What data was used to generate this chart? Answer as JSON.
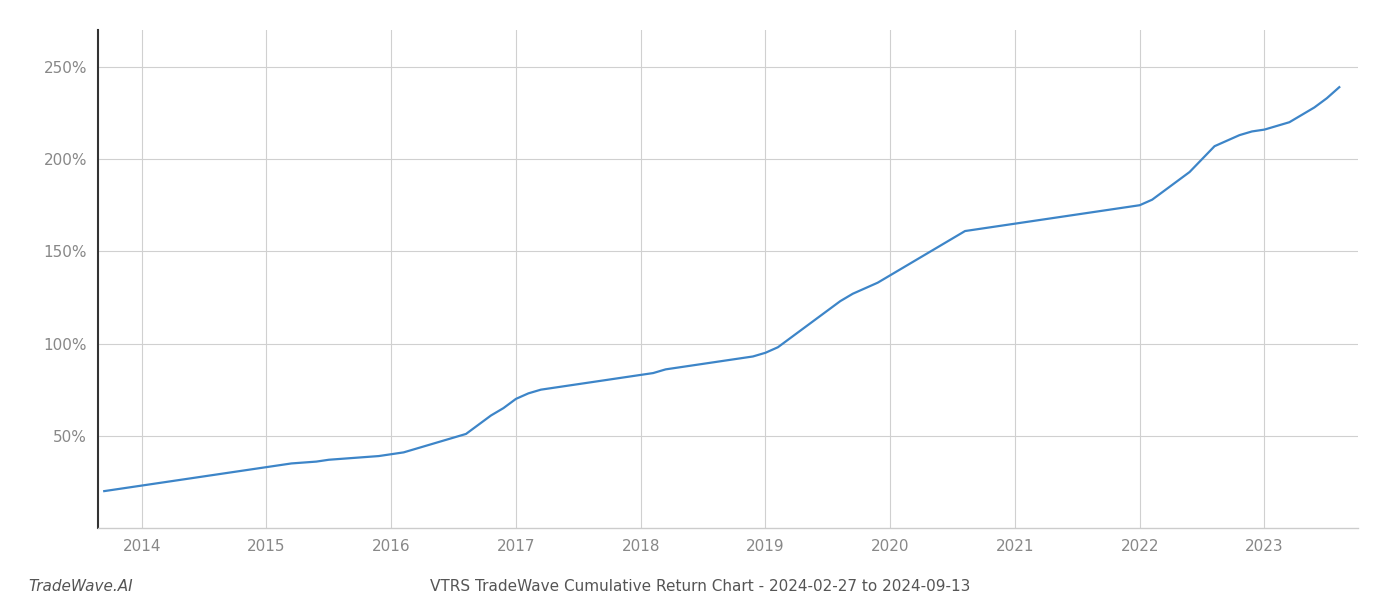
{
  "title": "VTRS TradeWave Cumulative Return Chart - 2024-02-27 to 2024-09-13",
  "watermark": "TradeWave.AI",
  "line_color": "#3d85c8",
  "background_color": "#ffffff",
  "grid_color": "#d0d0d0",
  "x_years": [
    2014,
    2015,
    2016,
    2017,
    2018,
    2019,
    2020,
    2021,
    2022,
    2023
  ],
  "data_x": [
    2013.7,
    2013.8,
    2013.9,
    2014.0,
    2014.1,
    2014.2,
    2014.3,
    2014.4,
    2014.5,
    2014.6,
    2014.7,
    2014.8,
    2014.9,
    2015.0,
    2015.1,
    2015.2,
    2015.3,
    2015.4,
    2015.5,
    2015.6,
    2015.7,
    2015.8,
    2015.9,
    2016.0,
    2016.1,
    2016.2,
    2016.3,
    2016.4,
    2016.5,
    2016.6,
    2016.7,
    2016.8,
    2016.9,
    2017.0,
    2017.1,
    2017.2,
    2017.3,
    2017.4,
    2017.5,
    2017.6,
    2017.7,
    2017.8,
    2017.9,
    2018.0,
    2018.1,
    2018.2,
    2018.3,
    2018.4,
    2018.5,
    2018.6,
    2018.7,
    2018.8,
    2018.9,
    2019.0,
    2019.1,
    2019.2,
    2019.3,
    2019.4,
    2019.5,
    2019.6,
    2019.7,
    2019.8,
    2019.9,
    2020.0,
    2020.1,
    2020.2,
    2020.3,
    2020.4,
    2020.5,
    2020.6,
    2020.7,
    2020.8,
    2020.9,
    2021.0,
    2021.1,
    2021.2,
    2021.3,
    2021.4,
    2021.5,
    2021.6,
    2021.7,
    2021.8,
    2021.9,
    2022.0,
    2022.1,
    2022.2,
    2022.3,
    2022.4,
    2022.5,
    2022.6,
    2022.7,
    2022.8,
    2022.9,
    2023.0,
    2023.1,
    2023.2,
    2023.3,
    2023.4,
    2023.5,
    2023.6
  ],
  "data_y": [
    20,
    21,
    22,
    23,
    24,
    25,
    26,
    27,
    28,
    29,
    30,
    31,
    32,
    33,
    34,
    35,
    35.5,
    36,
    37,
    37.5,
    38,
    38.5,
    39,
    40,
    41,
    43,
    45,
    47,
    49,
    51,
    56,
    61,
    65,
    70,
    73,
    75,
    76,
    77,
    78,
    79,
    80,
    81,
    82,
    83,
    84,
    86,
    87,
    88,
    89,
    90,
    91,
    92,
    93,
    95,
    98,
    103,
    108,
    113,
    118,
    123,
    127,
    130,
    133,
    137,
    141,
    145,
    149,
    153,
    157,
    161,
    162,
    163,
    164,
    165,
    166,
    167,
    168,
    169,
    170,
    171,
    172,
    173,
    174,
    175,
    178,
    183,
    188,
    193,
    200,
    207,
    210,
    213,
    215,
    216,
    218,
    220,
    224,
    228,
    233,
    239
  ],
  "ylim": [
    0,
    270
  ],
  "yticks": [
    50,
    100,
    150,
    200,
    250
  ],
  "xlim": [
    2013.65,
    2023.75
  ],
  "line_width": 1.6,
  "title_fontsize": 11,
  "tick_fontsize": 11,
  "watermark_fontsize": 11,
  "left_spine_color": "#333333",
  "bottom_spine_color": "#cccccc",
  "tick_color": "#888888",
  "title_color": "#555555",
  "watermark_color": "#555555"
}
